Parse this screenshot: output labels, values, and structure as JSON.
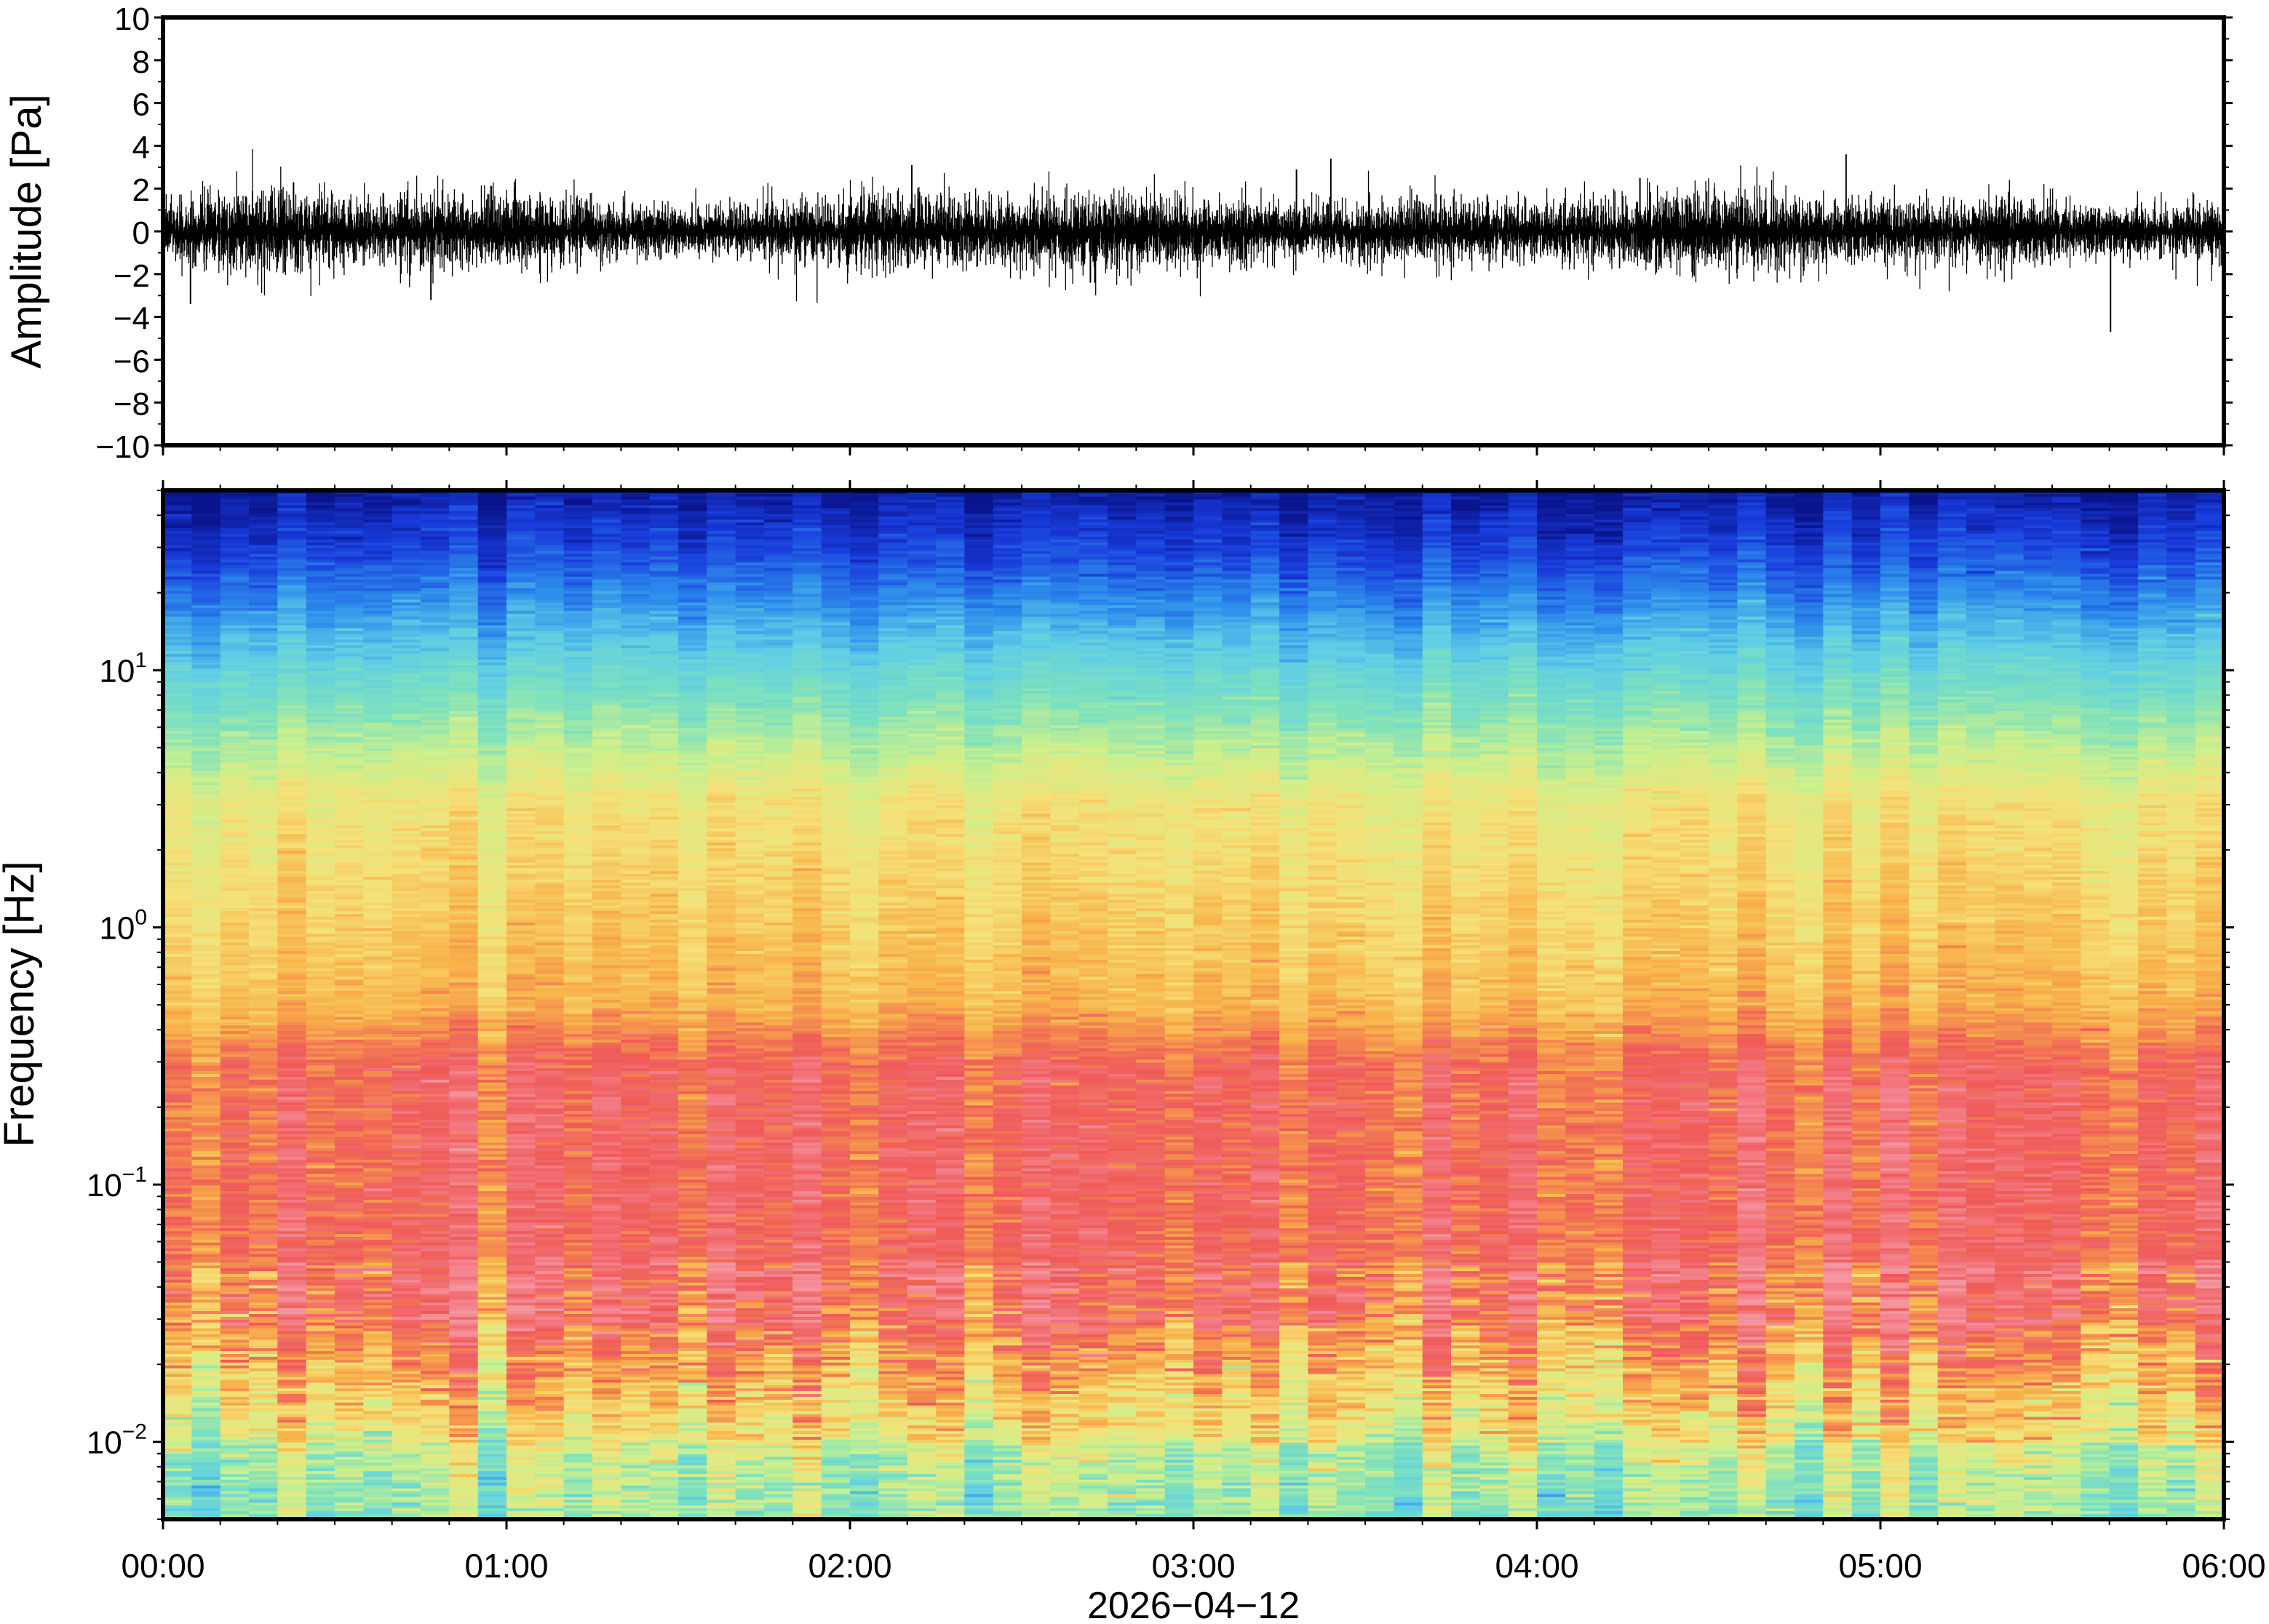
{
  "chart_data": [
    {
      "type": "line",
      "ylabel": "Amplitude [Pa]",
      "ylim": [
        -10,
        10
      ],
      "yticks": [
        10,
        8,
        6,
        4,
        2,
        0,
        -2,
        -4,
        -6,
        -8,
        -10
      ],
      "ytick_labels": [
        "10",
        "8",
        "6",
        "4",
        "2",
        "0",
        "−2",
        "−4",
        "−6",
        "−8",
        "−10"
      ],
      "xlim_hours": [
        0,
        6
      ],
      "grid": false,
      "series_description_values": {
        "baseline_noise_amplitude_pa": 0.8,
        "spikes": [
          {
            "t_hours": 0.08,
            "value": -3.4
          },
          {
            "t_hours": 0.78,
            "value": -3.2
          },
          {
            "t_hours": 2.18,
            "value": 3.1
          },
          {
            "t_hours": 3.3,
            "value": 2.9
          },
          {
            "t_hours": 3.4,
            "value": 3.4
          },
          {
            "t_hours": 4.9,
            "value": 3.6
          },
          {
            "t_hours": 5.67,
            "value": -4.7
          },
          {
            "t_hours": 0.38,
            "value": 2.3
          },
          {
            "t_hours": 2.7,
            "value": -2.4
          },
          {
            "t_hours": 4.3,
            "value": 2.5
          }
        ]
      }
    },
    {
      "type": "heatmap",
      "ylabel": "Frequency [Hz]",
      "yscale": "log",
      "ylim_hz": [
        0.005,
        50
      ],
      "yticks_hz": [
        0.01,
        0.1,
        1,
        10
      ],
      "ytick_labels": [
        {
          "base": "10",
          "exp": "−2"
        },
        {
          "base": "10",
          "exp": "−1"
        },
        {
          "base": "10",
          "exp": "0"
        },
        {
          "base": "10",
          "exp": "1"
        }
      ],
      "xlabel": "2026−04−12",
      "xticks": [
        "00:00",
        "01:00",
        "02:00",
        "03:00",
        "04:00",
        "05:00",
        "06:00"
      ],
      "colormap": "jet",
      "colors": {
        "low_freq_band": "#7fe6b0",
        "band_0_01_to_0_03": "#f9b24a",
        "band_0_03_to_0_3": "#ef5a58",
        "band_0_3_to_3": "#f8e07a",
        "band_3_to_10": "#7ed9c9",
        "band_10_to_30": "#2a8ee8",
        "band_above_30": "#0a1a9c"
      }
    }
  ]
}
